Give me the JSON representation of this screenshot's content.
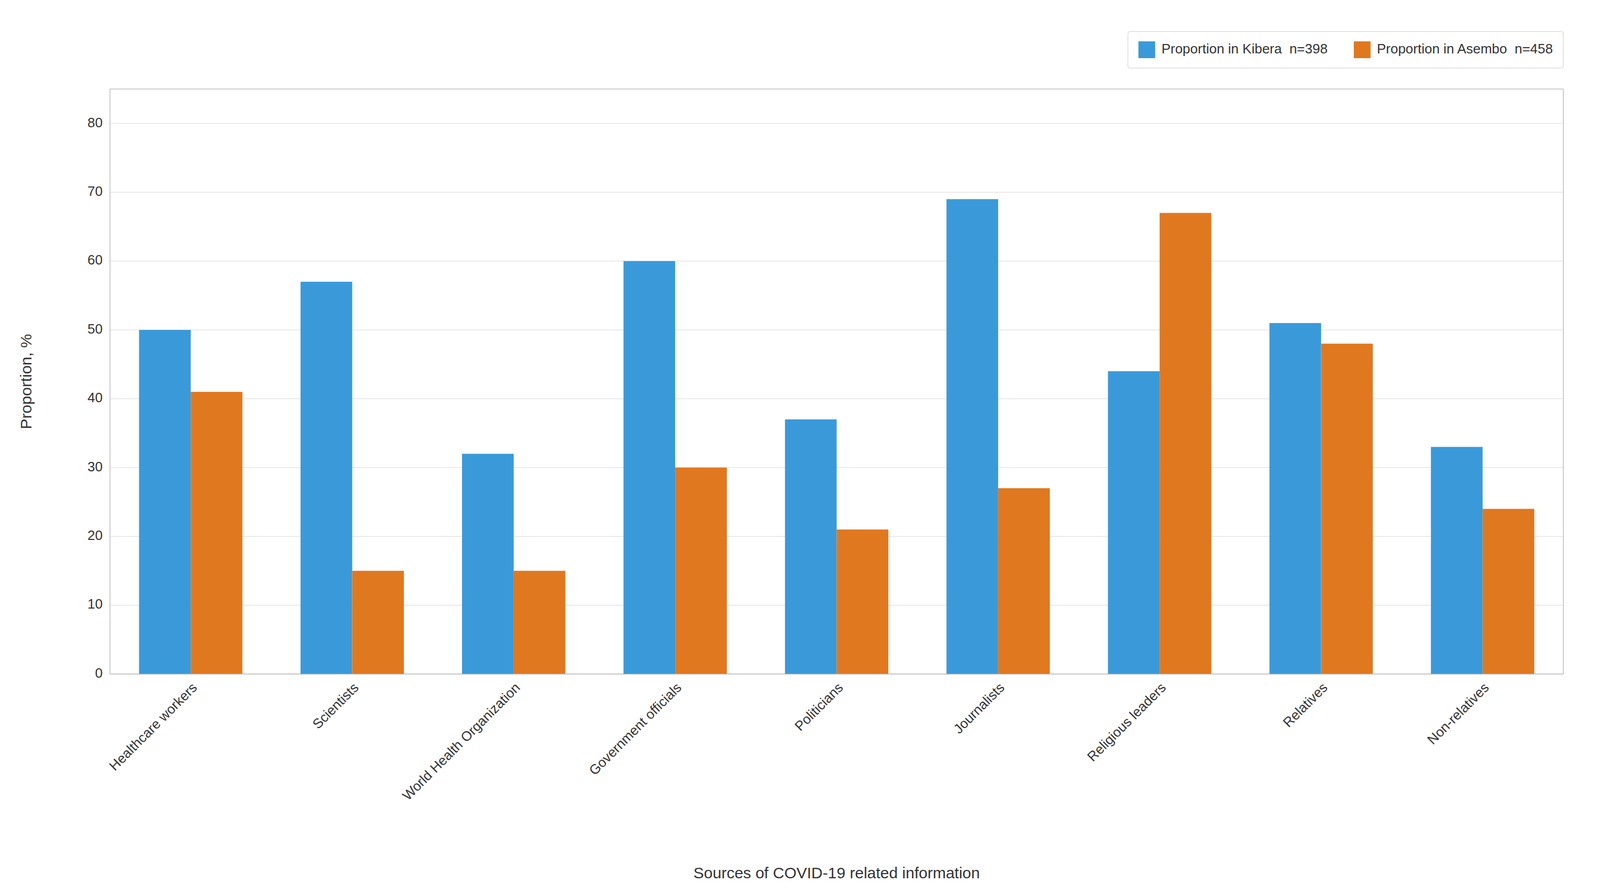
{
  "chart_data": {
    "type": "bar",
    "xlabel": "Sources of COVID-19 related information",
    "ylabel": "Proportion, %",
    "categories": [
      "Healthcare workers",
      "Scientists",
      "World Health Organization",
      "Government officials",
      "Politicians",
      "Journalists",
      "Religious leaders",
      "Relatives",
      "Non-relatives"
    ],
    "series": [
      {
        "name": "Proportion in Kibera  n=398",
        "color": "#3A9AD9",
        "values": [
          50,
          57,
          32,
          60,
          37,
          69,
          44,
          51,
          33
        ]
      },
      {
        "name": "Proportion in Asembo  n=458",
        "color": "#E07820",
        "values": [
          41,
          15,
          15,
          30,
          21,
          27,
          67,
          48,
          24
        ]
      }
    ],
    "ylim": [
      0,
      85
    ],
    "yticks": [
      0,
      10,
      20,
      30,
      40,
      50,
      60,
      70,
      80
    ],
    "grid": true,
    "legend": "upper right"
  }
}
